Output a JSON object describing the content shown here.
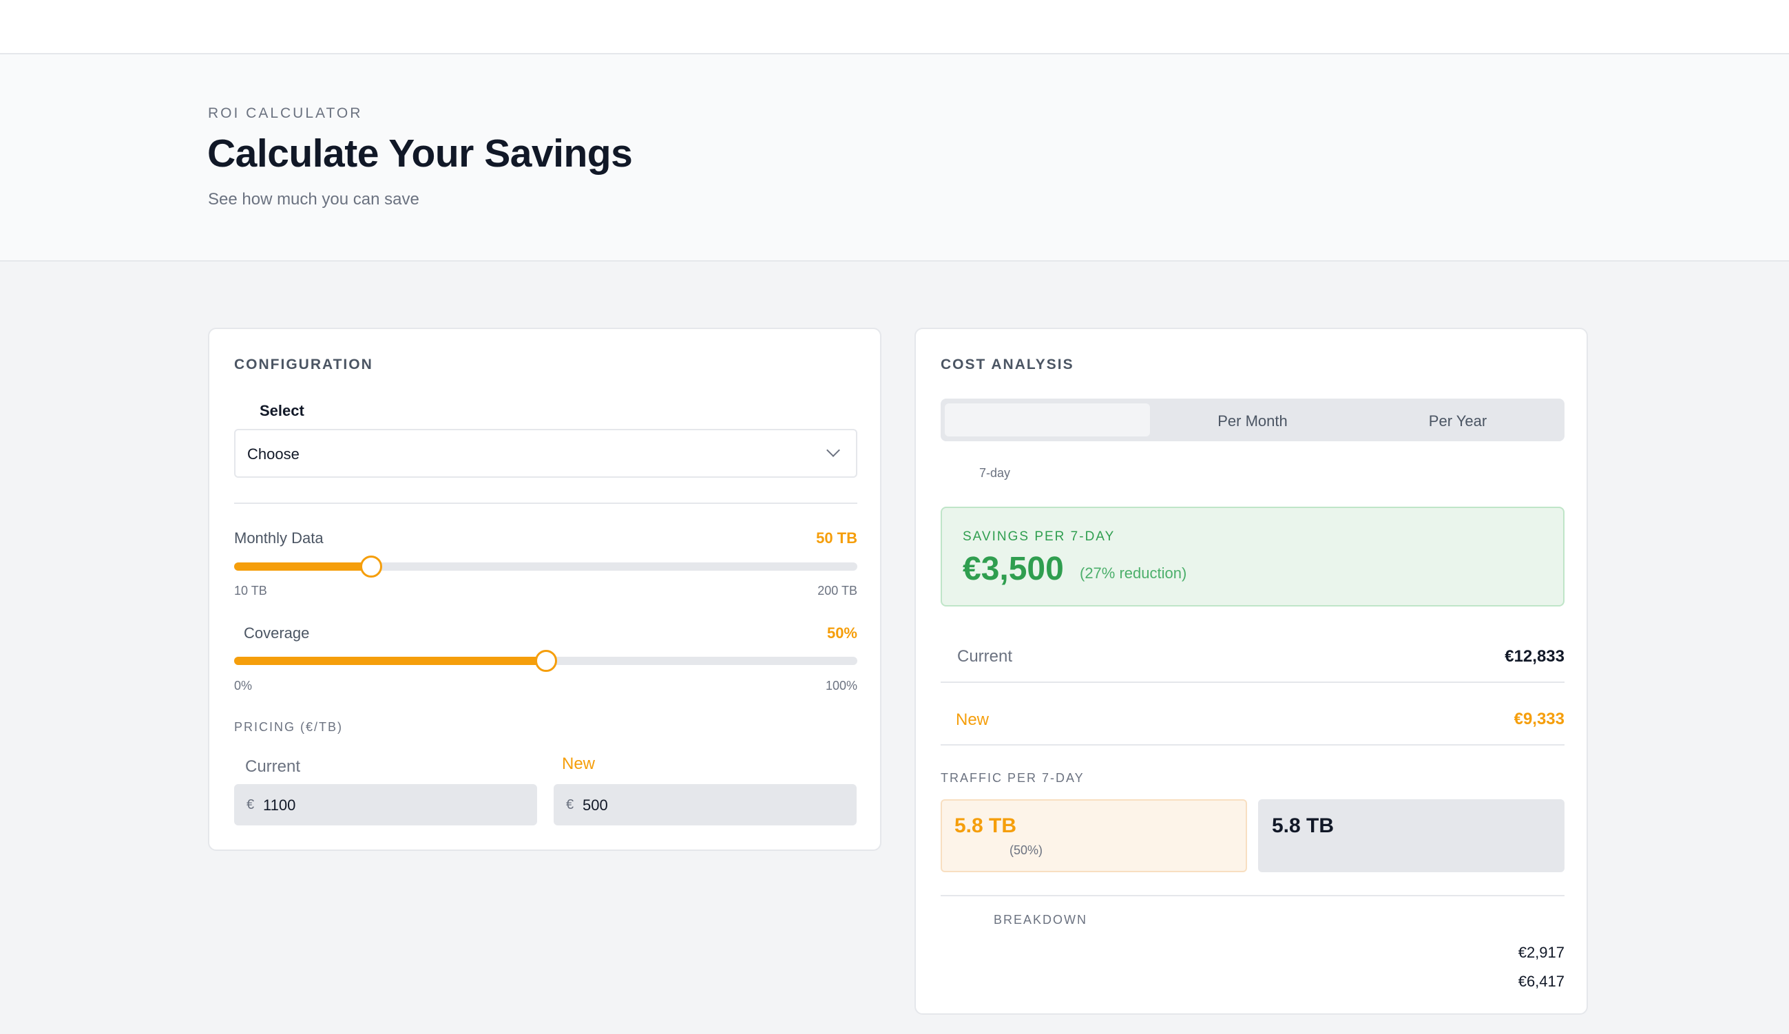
{
  "header": {
    "eyebrow": "ROI CALCULATOR",
    "title": "Calculate Your Savings",
    "subtitle": "See how much you can save"
  },
  "config": {
    "heading": "CONFIGURATION",
    "select_label": "Select",
    "select_value": "Choose",
    "monthly_data": {
      "label": "Monthly Data",
      "value": "50 TB",
      "min": "10 TB",
      "max": "200 TB",
      "fraction": 0.2105
    },
    "coverage": {
      "label": "Coverage",
      "value": "50%",
      "min": "0%",
      "max": "100%",
      "fraction": 0.5
    },
    "pricing_heading": "PRICING (€/TB)",
    "current_label": "Current",
    "new_label": "New",
    "currency_symbol": "€",
    "current_price": "1100",
    "new_price": "500"
  },
  "analysis": {
    "heading": "COST ANALYSIS",
    "tabs": [
      {
        "label": "",
        "active": true
      },
      {
        "label": "Per Month",
        "active": false
      },
      {
        "label": "Per Year",
        "active": false
      }
    ],
    "period": "7-day",
    "savings_heading": "SAVINGS PER 7-DAY",
    "savings_amount": "€3,500",
    "savings_reduction": "(27% reduction)",
    "current_label": "Current",
    "current_value": "€12,833",
    "new_label": "New",
    "new_value": "€9,333",
    "traffic_heading": "TRAFFIC PER 7-DAY",
    "traffic_new": "5.8 TB",
    "traffic_new_pct": "(50%)",
    "traffic_current": "5.8 TB",
    "breakdown_heading": "BREAKDOWN",
    "breakdown_values": [
      "€2,917",
      "€6,417"
    ]
  },
  "colors": {
    "accent": "#f59e0b",
    "success": "#2f9e4f",
    "text": "#111827",
    "muted": "#6b7280"
  }
}
